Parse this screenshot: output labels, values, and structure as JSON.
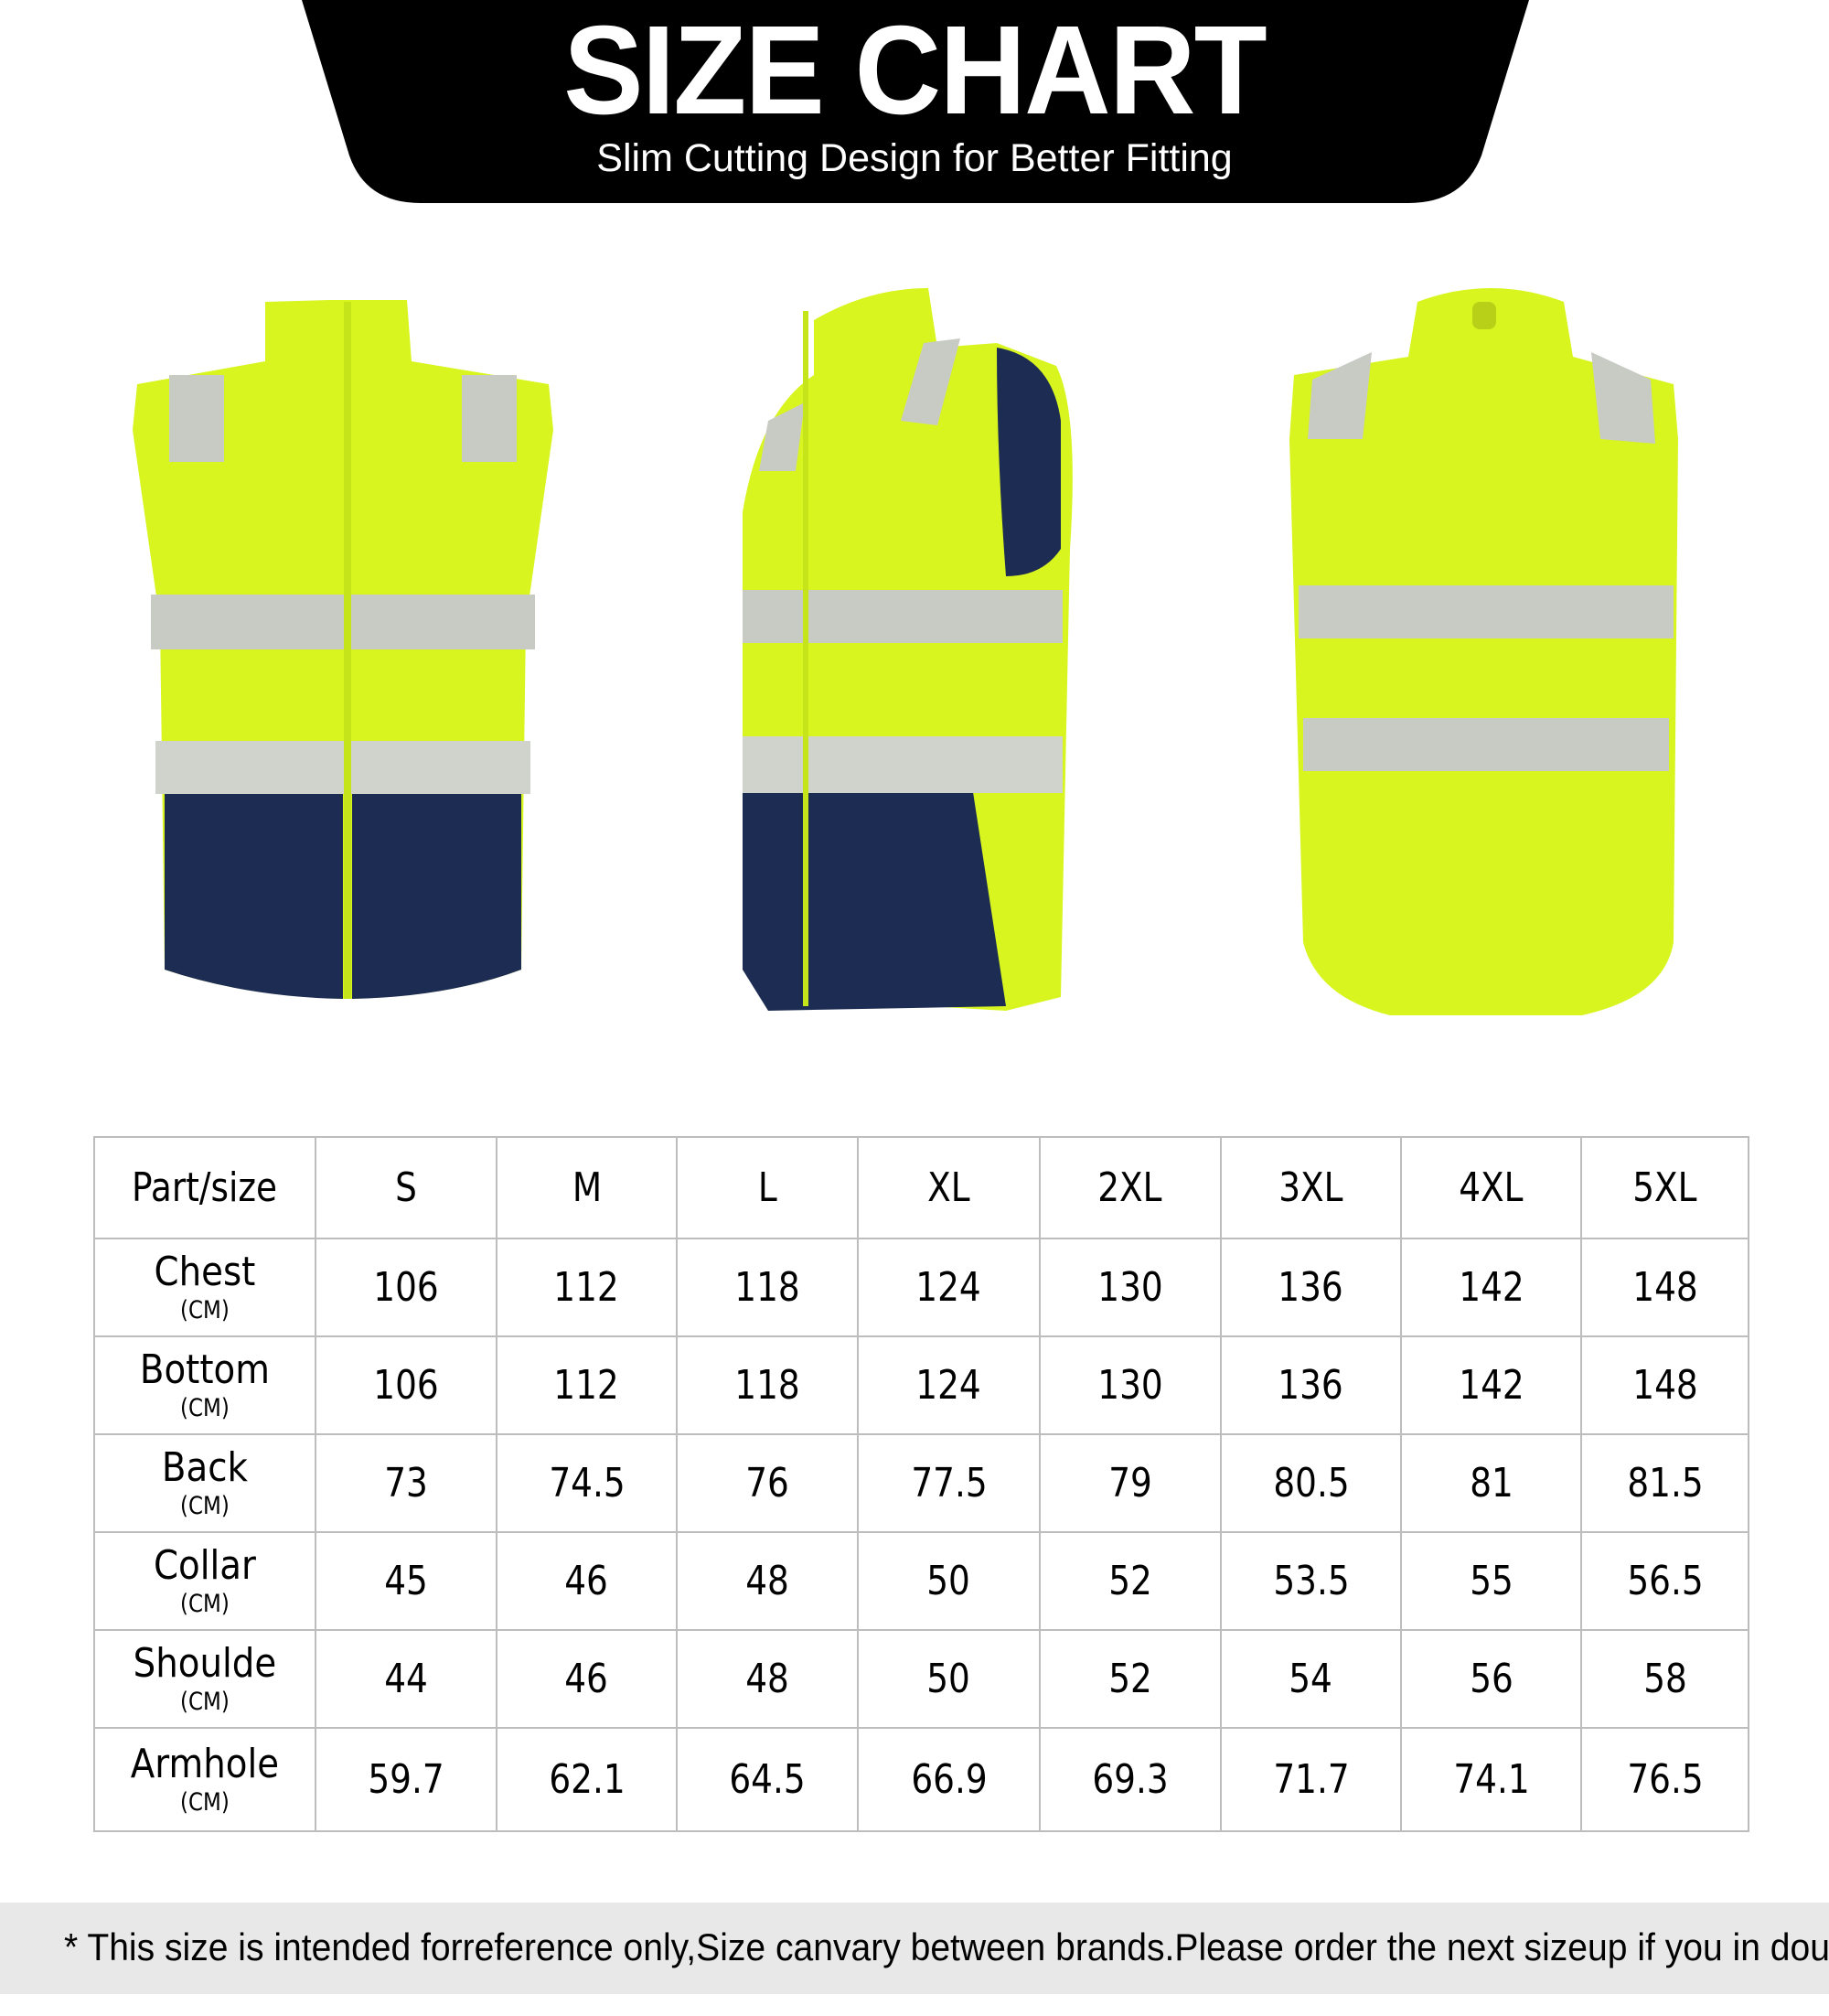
{
  "header": {
    "title": "SIZE CHART",
    "subtitle": "Slim Cutting Design for Better Fitting",
    "background_color": "#000000"
  },
  "images": [
    "vest-front",
    "vest-side",
    "vest-back"
  ],
  "colors": {
    "hi_vis": "#d8f520",
    "navy": "#1c2c52",
    "reflective": "#c8cac4"
  },
  "table": {
    "headers": [
      "Part/size",
      "S",
      "M",
      "L",
      "XL",
      "2XL",
      "3XL",
      "4XL",
      "5XL"
    ],
    "unit": "(CM)",
    "rows": [
      {
        "part": "Chest",
        "values": [
          "106",
          "112",
          "118",
          "124",
          "130",
          "136",
          "142",
          "148"
        ]
      },
      {
        "part": "Bottom",
        "values": [
          "106",
          "112",
          "118",
          "124",
          "130",
          "136",
          "142",
          "148"
        ]
      },
      {
        "part": "Back",
        "values": [
          "73",
          "74.5",
          "76",
          "77.5",
          "79",
          "80.5",
          "81",
          "81.5"
        ]
      },
      {
        "part": "Collar",
        "values": [
          "45",
          "46",
          "48",
          "50",
          "52",
          "53.5",
          "55",
          "56.5"
        ]
      },
      {
        "part": "Shoulde",
        "values": [
          "44",
          "46",
          "48",
          "50",
          "52",
          "54",
          "56",
          "58"
        ]
      },
      {
        "part": "Armhole",
        "values": [
          "59.7",
          "62.1",
          "64.5",
          "66.9",
          "69.3",
          "71.7",
          "74.1",
          "76.5"
        ]
      }
    ]
  },
  "footer": {
    "note": "* This size is intended forreference only,Size canvary between brands.Please order the next sizeup if you in doubt *"
  }
}
